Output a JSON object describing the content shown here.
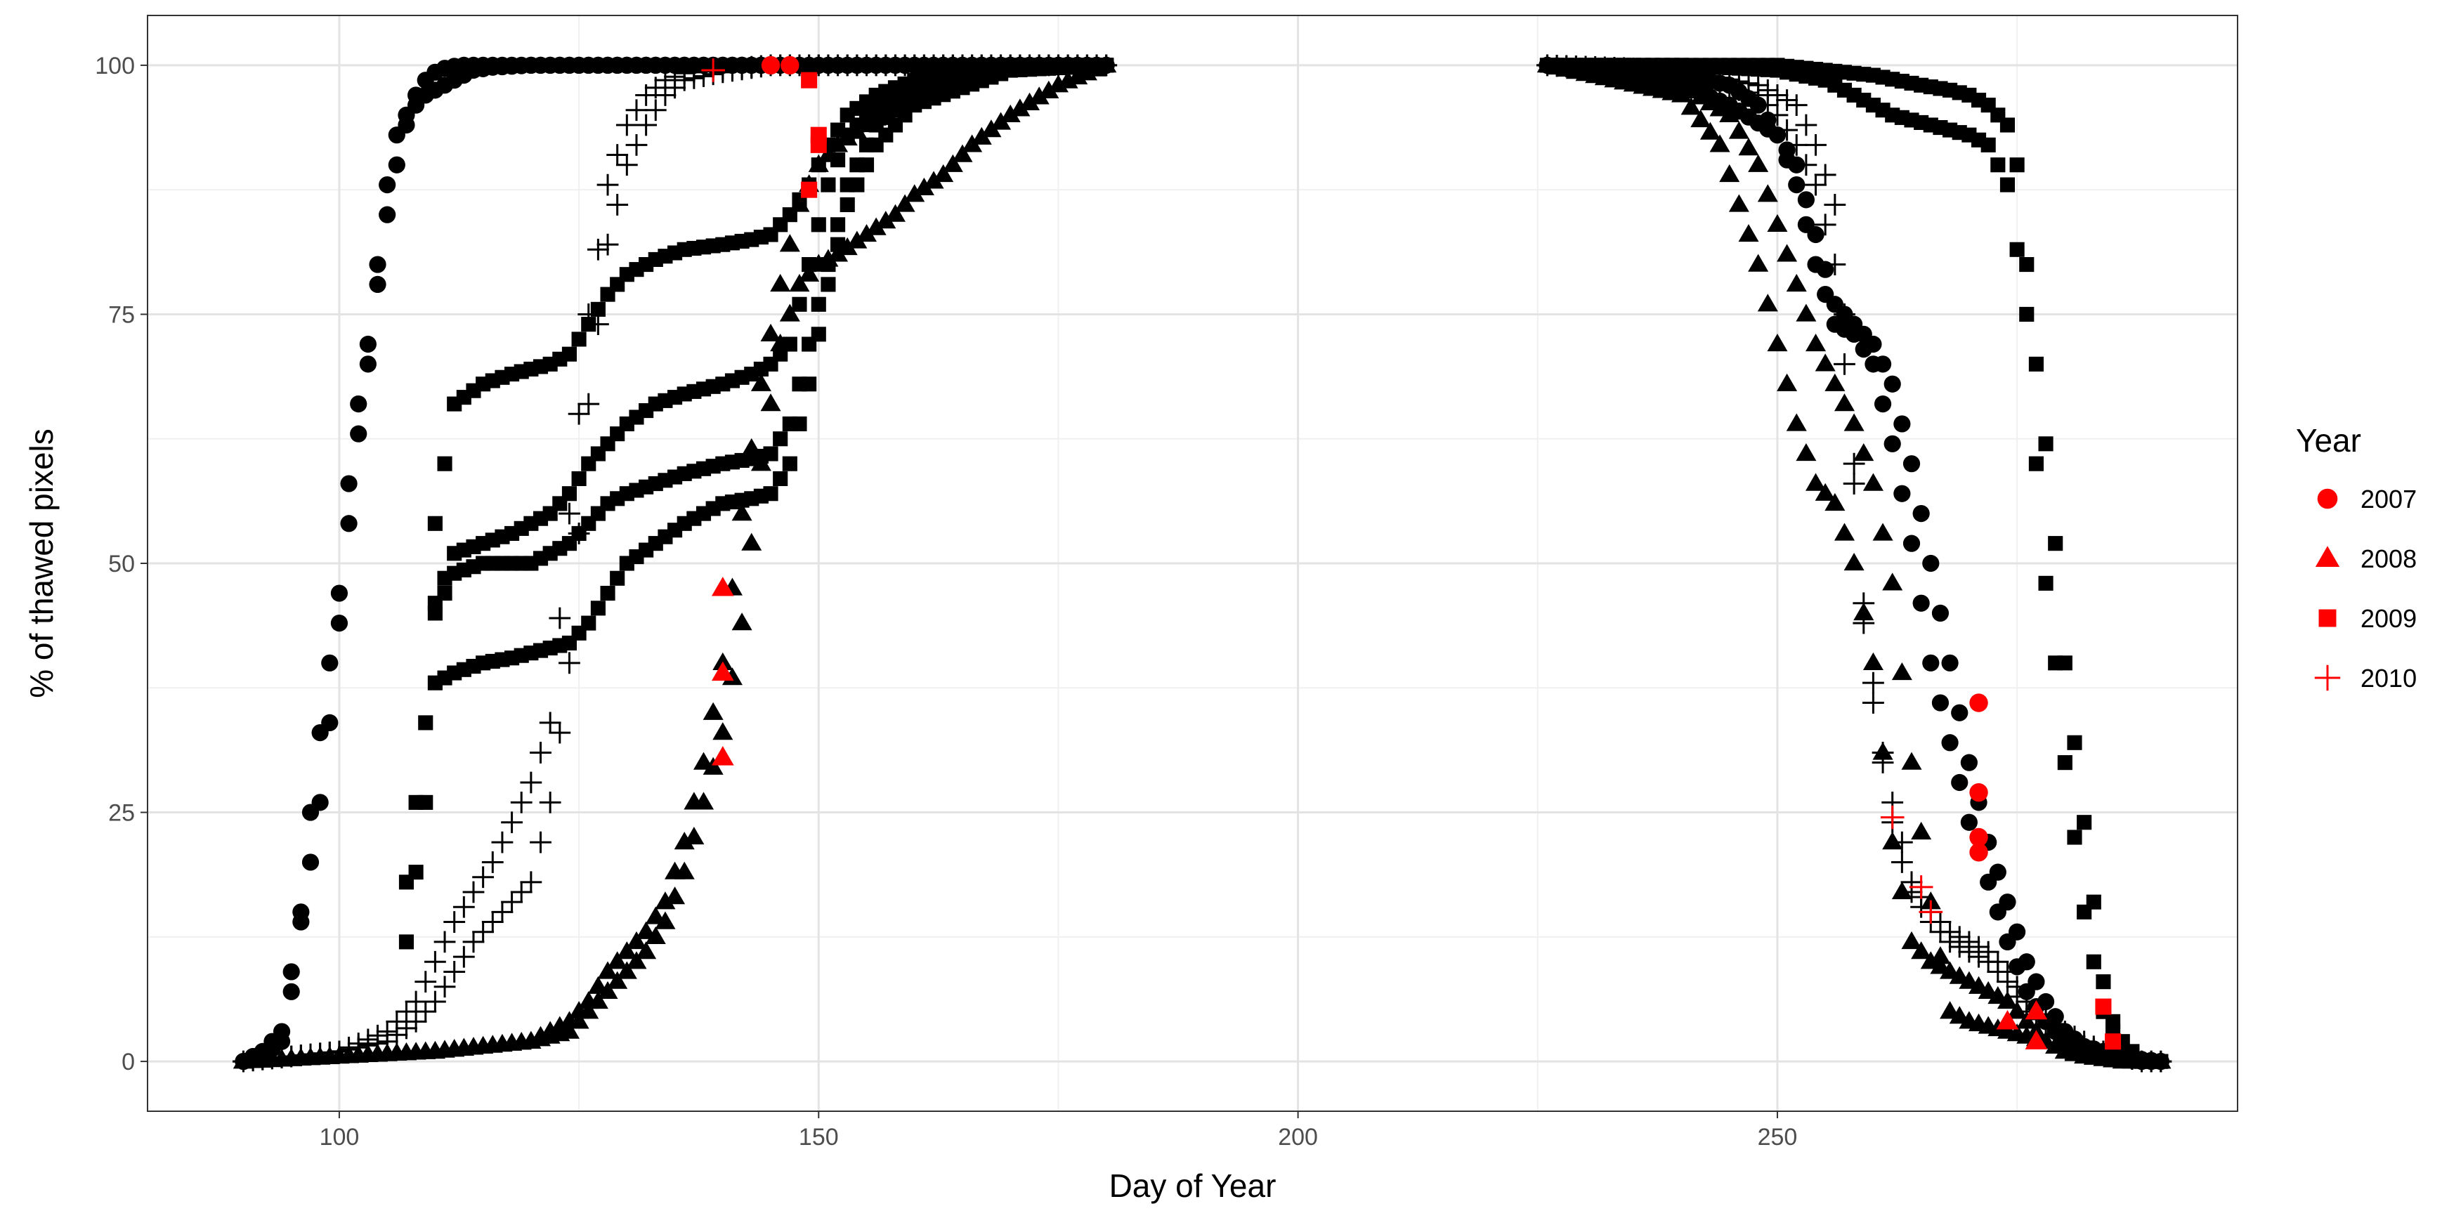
{
  "chart_data": {
    "type": "scatter",
    "title": "",
    "xlabel": "Day of Year",
    "ylabel": "% of thawed pixels",
    "xlim": [
      80,
      298
    ],
    "ylim": [
      -5,
      105
    ],
    "x_ticks": [
      100,
      150,
      200,
      250
    ],
    "y_ticks": [
      0,
      25,
      50,
      75,
      100
    ],
    "grid": true,
    "legend_title": "Year",
    "legend_position": "right",
    "highlight_color": "#ff0000",
    "base_color": "#000000",
    "legend": [
      {
        "label": "2007",
        "shape": "circle"
      },
      {
        "label": "2008",
        "shape": "triangle"
      },
      {
        "label": "2009",
        "shape": "square"
      },
      {
        "label": "2010",
        "shape": "plus"
      }
    ],
    "series": [
      {
        "name": "circle-curve-a",
        "shape": "circle",
        "color": "#000000",
        "x": [
          90,
          92,
          94,
          95,
          96,
          97,
          98,
          99,
          100,
          101,
          102,
          103,
          104,
          105,
          106,
          107,
          108,
          109,
          110,
          111,
          112,
          113,
          115,
          118,
          120,
          125,
          130,
          140,
          150,
          160,
          170,
          180
        ],
        "y": [
          0,
          0.5,
          2,
          7,
          14,
          20,
          26,
          34,
          44,
          54,
          63,
          70,
          78,
          85,
          90,
          94,
          97,
          98.5,
          99.3,
          99.7,
          99.9,
          100,
          100,
          100,
          100,
          100,
          100,
          100,
          100,
          100,
          100,
          100
        ]
      },
      {
        "name": "circle-curve-b",
        "shape": "circle",
        "color": "#000000",
        "x": [
          90,
          92,
          94,
          95,
          96,
          97,
          98,
          99,
          100,
          101,
          102,
          103,
          104,
          105,
          106,
          107,
          108,
          109,
          110,
          111,
          112,
          113,
          114,
          116,
          118,
          120,
          125,
          130,
          140,
          150,
          160,
          170,
          180
        ],
        "y": [
          0,
          1,
          3,
          9,
          15,
          25,
          33,
          40,
          47,
          58,
          66,
          72,
          80,
          88,
          93,
          95,
          96,
          97,
          97.5,
          98,
          98.5,
          99,
          99.5,
          99.8,
          99.9,
          100,
          100,
          100,
          100,
          100,
          100,
          100,
          100
        ]
      },
      {
        "name": "circle-curve-c",
        "shape": "circle",
        "color": "#000000",
        "x": [
          226,
          235,
          240,
          245,
          250,
          252,
          254,
          256,
          258,
          260,
          262,
          264,
          266,
          268,
          270,
          272,
          274,
          276,
          278,
          280,
          282,
          284,
          286,
          288,
          290
        ],
        "y": [
          100,
          99.5,
          98,
          96,
          93,
          90,
          83,
          76,
          74,
          72,
          68,
          60,
          50,
          40,
          30,
          22,
          16,
          10,
          6,
          3,
          1.5,
          1,
          0.5,
          0.2,
          0
        ]
      },
      {
        "name": "circle-curve-d",
        "shape": "circle",
        "color": "#000000",
        "x": [
          226,
          240,
          245,
          248,
          250,
          252,
          254,
          256,
          258,
          260,
          262,
          264,
          266,
          268,
          270,
          272,
          274,
          276,
          278,
          280,
          282,
          284,
          286,
          288,
          290
        ],
        "y": [
          100,
          99,
          98,
          96,
          93,
          88,
          80,
          74,
          73,
          70,
          62,
          52,
          40,
          32,
          24,
          18,
          12,
          7,
          4,
          2,
          1,
          0.5,
          0.2,
          0,
          0
        ]
      },
      {
        "name": "triangle-curve-a",
        "shape": "triangle",
        "color": "#000000",
        "x": [
          90,
          100,
          110,
          120,
          124,
          126,
          128,
          130,
          132,
          134,
          136,
          138,
          140,
          142,
          144,
          146,
          148,
          150,
          152,
          155,
          158,
          160,
          165,
          170,
          180
        ],
        "y": [
          0,
          0.5,
          1,
          2,
          4,
          6,
          9,
          11,
          13,
          16,
          22,
          30,
          40,
          55,
          68,
          78,
          86,
          90,
          92,
          94,
          96,
          98,
          99.5,
          100,
          100
        ]
      },
      {
        "name": "triangle-curve-b",
        "shape": "triangle",
        "color": "#000000",
        "x": [
          90,
          100,
          110,
          120,
          124,
          126,
          128,
          130,
          132,
          134,
          136,
          138,
          140,
          142,
          144,
          146,
          148,
          150,
          152,
          155,
          158,
          160,
          163,
          166,
          170,
          175,
          180
        ],
        "y": [
          0,
          0.5,
          1,
          2,
          3,
          5,
          7,
          9,
          11,
          14,
          19,
          26,
          33,
          44,
          60,
          72,
          78,
          80,
          81,
          83,
          85,
          87,
          89,
          92,
          95,
          98,
          100
        ]
      },
      {
        "name": "triangle-curve-c",
        "shape": "triangle",
        "color": "#000000",
        "x": [
          226,
          240,
          244,
          246,
          248,
          250,
          252,
          254,
          256,
          258,
          260,
          262,
          264,
          266,
          268,
          270,
          272,
          274,
          276,
          278,
          280,
          282,
          286,
          290
        ],
        "y": [
          100,
          97,
          92,
          86,
          80,
          72,
          64,
          58,
          56,
          50,
          40,
          22,
          12,
          10,
          9,
          8,
          7,
          6,
          4,
          2,
          1,
          0.5,
          0,
          0
        ]
      },
      {
        "name": "triangle-curve-d",
        "shape": "triangle",
        "color": "#000000",
        "x": [
          226,
          240,
          245,
          248,
          250,
          252,
          254,
          256,
          258,
          260,
          262,
          264,
          266,
          268,
          270,
          272,
          274,
          276,
          278,
          280,
          284,
          288,
          290
        ],
        "y": [
          100,
          98,
          95,
          90,
          84,
          78,
          72,
          68,
          64,
          58,
          48,
          30,
          16,
          5,
          4,
          3.5,
          3,
          2.5,
          2,
          1,
          0.5,
          0,
          0
        ]
      },
      {
        "name": "square-curve-a",
        "shape": "square",
        "color": "#000000",
        "x": [
          107,
          109,
          110,
          112,
          115,
          118,
          120,
          122,
          124,
          126,
          128,
          130,
          133,
          136,
          140,
          143,
          145,
          147,
          149,
          151,
          153,
          156,
          160,
          165,
          170,
          180
        ],
        "y": [
          18,
          34,
          54,
          66,
          68,
          69,
          69.5,
          70,
          71,
          74,
          77,
          79,
          80.5,
          81.5,
          82,
          82.5,
          83,
          85,
          88,
          92,
          95,
          97,
          98.5,
          99.5,
          100,
          100
        ]
      },
      {
        "name": "square-curve-b",
        "shape": "square",
        "color": "#000000",
        "x": [
          107,
          109,
          110,
          112,
          115,
          118,
          120,
          122,
          124,
          126,
          128,
          130,
          133,
          136,
          140,
          143,
          145,
          147,
          149,
          151,
          153,
          156,
          160,
          165,
          170,
          180
        ],
        "y": [
          12,
          26,
          46,
          51,
          52,
          53,
          54,
          55,
          57,
          60,
          62,
          64,
          66,
          67,
          68,
          69,
          70,
          72,
          80,
          88,
          93,
          96,
          98,
          99.5,
          100,
          100
        ]
      },
      {
        "name": "square-curve-c",
        "shape": "square",
        "color": "#000000",
        "x": [
          110,
          112,
          115,
          118,
          120,
          122,
          124,
          126,
          128,
          130,
          133,
          136,
          140,
          143,
          145,
          147,
          149,
          151,
          153,
          156,
          160,
          170,
          180
        ],
        "y": [
          45,
          49,
          50,
          50,
          50,
          51,
          52,
          54,
          56,
          57,
          58,
          59,
          60,
          60.5,
          61,
          64,
          72,
          80,
          88,
          94,
          97,
          99.5,
          100
        ]
      },
      {
        "name": "square-curve-d",
        "shape": "square",
        "color": "#000000",
        "x": [
          110,
          112,
          115,
          118,
          120,
          122,
          124,
          126,
          128,
          130,
          133,
          136,
          140,
          143,
          145,
          147,
          149,
          151,
          153,
          156,
          160,
          170,
          180
        ],
        "y": [
          38,
          39,
          40,
          40.5,
          41,
          41.5,
          42,
          44,
          47,
          50,
          52,
          54,
          56,
          56.5,
          57,
          60,
          68,
          78,
          86,
          92,
          96,
          99.5,
          100
        ]
      },
      {
        "name": "square-curve-e",
        "shape": "square",
        "color": "#000000",
        "x": [
          226,
          240,
          250,
          255,
          260,
          265,
          268,
          270,
          272,
          274,
          275,
          276,
          277,
          278,
          279,
          280,
          281,
          282,
          283,
          284,
          285,
          286,
          287,
          288,
          290
        ],
        "y": [
          100,
          100,
          100,
          99.5,
          99,
          98,
          97.5,
          97,
          96,
          94,
          90,
          80,
          70,
          62,
          52,
          40,
          32,
          24,
          16,
          8,
          4,
          2,
          1,
          0,
          0
        ]
      },
      {
        "name": "square-curve-f",
        "shape": "square",
        "color": "#000000",
        "x": [
          226,
          240,
          250,
          255,
          258,
          260,
          262,
          264,
          266,
          268,
          270,
          272,
          274,
          276,
          277,
          278,
          279,
          280,
          282,
          284,
          286,
          288,
          290
        ],
        "y": [
          100,
          100,
          99.5,
          98.5,
          97,
          96,
          95,
          94.5,
          94,
          93.5,
          93,
          92,
          88,
          75,
          60,
          48,
          40,
          30,
          15,
          5,
          1,
          0,
          0
        ]
      },
      {
        "name": "plus-curve-a",
        "shape": "plus",
        "color": "#000000",
        "x": [
          90,
          100,
          105,
          108,
          110,
          112,
          114,
          116,
          118,
          120,
          122,
          124,
          126,
          128,
          130,
          132,
          134,
          136,
          140,
          145,
          150,
          160,
          170,
          180
        ],
        "y": [
          0,
          1,
          3,
          6,
          10,
          14,
          17,
          20,
          24,
          28,
          34,
          55,
          75,
          88,
          94,
          97,
          98.5,
          99.2,
          99.6,
          100,
          100,
          100,
          100,
          100
        ]
      },
      {
        "name": "plus-curve-b",
        "shape": "plus",
        "color": "#000000",
        "x": [
          90,
          100,
          105,
          108,
          110,
          112,
          114,
          116,
          118,
          120,
          122,
          124,
          126,
          128,
          130,
          132,
          134,
          136,
          140,
          145,
          150,
          160,
          170,
          180
        ],
        "y": [
          0,
          1,
          2,
          4,
          6,
          9,
          12,
          14,
          16,
          18,
          26,
          40,
          66,
          82,
          90,
          94,
          97,
          98.5,
          99.3,
          100,
          100,
          100,
          100,
          100
        ]
      },
      {
        "name": "plus-curve-c",
        "shape": "plus",
        "color": "#000000",
        "x": [
          226,
          240,
          248,
          250,
          252,
          254,
          256,
          257,
          258,
          259,
          260,
          261,
          262,
          263,
          264,
          266,
          268,
          270,
          272,
          274,
          276,
          280,
          284,
          288,
          290
        ],
        "y": [
          100,
          99.5,
          98,
          97,
          96,
          92,
          86,
          75,
          60,
          46,
          38,
          30,
          24,
          20,
          17,
          14,
          12,
          11,
          10,
          8,
          5,
          2,
          1,
          0,
          0
        ]
      },
      {
        "name": "plus-curve-d",
        "shape": "plus",
        "color": "#000000",
        "x": [
          226,
          240,
          248,
          250,
          252,
          254,
          256,
          257,
          258,
          259,
          260,
          261,
          262,
          263,
          264,
          266,
          268,
          270,
          272,
          274,
          276,
          280,
          284,
          288,
          290
        ],
        "y": [
          100,
          99,
          97,
          95,
          92,
          88,
          80,
          70,
          58,
          44,
          36,
          31,
          26,
          22,
          18,
          15,
          13,
          12,
          11,
          9,
          6,
          3,
          1,
          0,
          0
        ]
      },
      {
        "name": "2007",
        "shape": "circle",
        "color": "#ff0000",
        "x": [
          145,
          147,
          271,
          271,
          271,
          271
        ],
        "y": [
          100,
          100,
          36,
          27,
          22.5,
          21
        ]
      },
      {
        "name": "2008",
        "shape": "triangle",
        "color": "#ff0000",
        "x": [
          140,
          140,
          140,
          274,
          277,
          277
        ],
        "y": [
          47.5,
          39,
          30.5,
          4,
          5,
          2
        ]
      },
      {
        "name": "2009",
        "shape": "square",
        "color": "#ff0000",
        "x": [
          149,
          150,
          150,
          149,
          284,
          285
        ],
        "y": [
          98.5,
          93,
          92,
          87.5,
          5.5,
          2
        ]
      },
      {
        "name": "2010",
        "shape": "plus",
        "color": "#ff0000",
        "x": [
          139,
          262,
          265,
          266
        ],
        "y": [
          99.5,
          24.5,
          17.5,
          15
        ]
      }
    ]
  }
}
